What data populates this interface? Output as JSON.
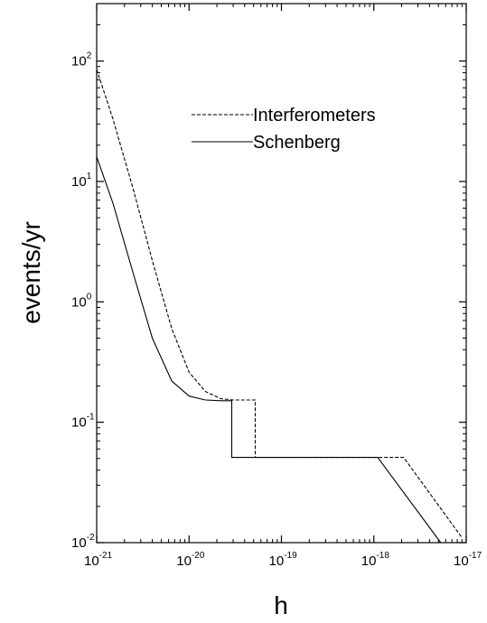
{
  "chart_data": {
    "type": "line",
    "title": "",
    "xlabel": "h",
    "ylabel": "events/yr",
    "xscale": "log",
    "yscale": "log",
    "xlim": [
      1e-21,
      1e-17
    ],
    "ylim": [
      0.01,
      300
    ],
    "grid": false,
    "legend_position": "upper-right",
    "x_ticks": [
      {
        "value": 1e-21,
        "base": "10",
        "exp": "-21"
      },
      {
        "value": 1e-20,
        "base": "10",
        "exp": "-20"
      },
      {
        "value": 1e-19,
        "base": "10",
        "exp": "-19"
      },
      {
        "value": 1e-18,
        "base": "10",
        "exp": "-18"
      },
      {
        "value": 1e-17,
        "base": "10",
        "exp": "-17"
      }
    ],
    "y_ticks": [
      {
        "value": 0.01,
        "base": "10",
        "exp": "-2"
      },
      {
        "value": 0.1,
        "base": "10",
        "exp": "-1"
      },
      {
        "value": 1,
        "base": "10",
        "exp": "0"
      },
      {
        "value": 10,
        "base": "10",
        "exp": "1"
      },
      {
        "value": 100,
        "base": "10",
        "exp": "2"
      }
    ],
    "series": [
      {
        "name": "Interferometers",
        "style": "dashed",
        "color": "#000000",
        "x": [
          1e-21,
          1.5e-21,
          2.5e-21,
          4e-21,
          6.5e-21,
          1e-20,
          1.5e-20,
          2.2e-20,
          3e-20,
          5.2e-20,
          5.2e-20,
          2.1e-18,
          9e-18
        ],
        "y": [
          85,
          33,
          8.5,
          2.2,
          0.6,
          0.26,
          0.18,
          0.157,
          0.153,
          0.153,
          0.051,
          0.051,
          0.011
        ]
      },
      {
        "name": "Schenberg",
        "style": "solid",
        "color": "#000000",
        "x": [
          1e-21,
          1.5e-21,
          2.5e-21,
          4e-21,
          6.5e-21,
          1e-20,
          1.5e-20,
          2.2e-20,
          2.9e-20,
          2.9e-20,
          1.1e-18,
          5.3e-18
        ],
        "y": [
          16,
          6.6,
          1.7,
          0.5,
          0.22,
          0.165,
          0.153,
          0.151,
          0.151,
          0.051,
          0.051,
          0.01
        ]
      }
    ]
  }
}
